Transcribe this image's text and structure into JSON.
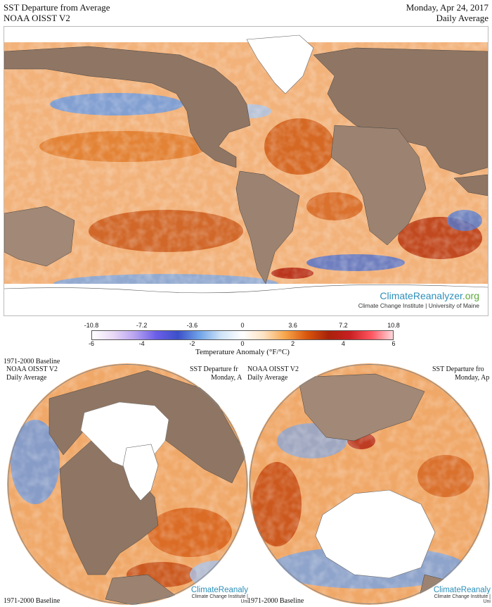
{
  "header": {
    "title": "SST Departure from Average",
    "dataset": "NOAA OISST V2",
    "date": "Monday, Apr 24, 2017",
    "period": "Daily Average"
  },
  "logo": {
    "name_part1": "ClimateReanalyzer",
    "name_part2": ".org",
    "subtitle": "Climate Change Institute | University of Maine"
  },
  "colorbar": {
    "fahrenheit_ticks": [
      "-10.8",
      "-7.2",
      "-3.6",
      "0",
      "3.6",
      "7.2",
      "10.8"
    ],
    "celsius_ticks": [
      "-6",
      "-4",
      "-2",
      "0",
      "2",
      "4",
      "6"
    ],
    "title": "Temperature Anomaly (°F/°C)",
    "colors": [
      "#ffffff",
      "#e9d8f6",
      "#b7a2f0",
      "#6a5ee8",
      "#3c50c8",
      "#6fa3e8",
      "#cfe3f7",
      "#ffffff",
      "#fde2c2",
      "#f7a44a",
      "#d9560d",
      "#a8220a",
      "#c81f22",
      "#ff5560",
      "#ffd8dc"
    ]
  },
  "globe_north": {
    "baseline_top": "1971-2000 Baseline",
    "dataset": "NOAA OISST V2",
    "period": "Daily Average",
    "title_clipped": "SST Departure fr",
    "date_clipped": "Monday, A",
    "baseline_bottom": "1971-2000 Baseline",
    "logo_clipped": "ClimateReanaly",
    "logo_sub_clipped": "Climate Change Institute | Uni"
  },
  "globe_south": {
    "dataset": "NOAA OISST V2",
    "period": "Daily Average",
    "title_clipped": "SST Departure fro",
    "date_clipped": "Monday, Ap",
    "baseline_bottom": "1971-2000 Baseline",
    "logo_clipped": "ClimateReanaly",
    "logo_sub_clipped": "Climate Change Institute | Uni"
  },
  "palette": {
    "land": "#8f7563",
    "land_light": "#a28876",
    "ice": "#ffffff",
    "warm": "#e4782a",
    "warm_dark": "#b24210",
    "cool": "#5f8fd6",
    "cool_dark": "#2c3ea8"
  }
}
